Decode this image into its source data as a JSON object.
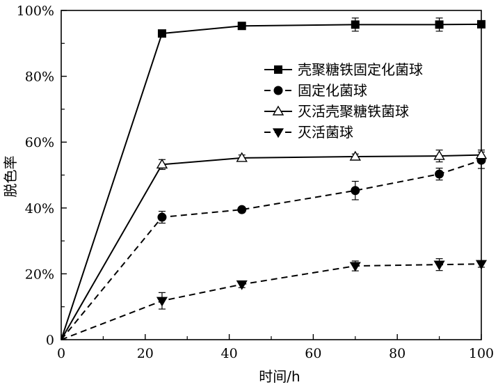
{
  "chart_data": {
    "type": "line",
    "xlabel": "时间/h",
    "ylabel": "脱色率",
    "xlim": [
      0,
      100
    ],
    "ylim": [
      0,
      100
    ],
    "x_ticks": [
      "0",
      "20",
      "40",
      "60",
      "80",
      "100"
    ],
    "y_ticks": [
      "0",
      "20%",
      "40%",
      "60%",
      "80%",
      "100%"
    ],
    "grid": false,
    "legend_position": "top-right",
    "series": [
      {
        "name": "壳聚糖铁固定化菌球",
        "marker": "square",
        "line": "solid",
        "points": [
          {
            "x": 0,
            "y": 0,
            "err": 0
          },
          {
            "x": 24,
            "y": 93,
            "err": 0.8
          },
          {
            "x": 43,
            "y": 95.3,
            "err": 0.8
          },
          {
            "x": 70,
            "y": 95.7,
            "err": 2.0
          },
          {
            "x": 90,
            "y": 95.7,
            "err": 2.0
          },
          {
            "x": 100,
            "y": 95.8,
            "err": 1.0
          }
        ]
      },
      {
        "name": "固定化菌球",
        "marker": "circle",
        "line": "dashed",
        "points": [
          {
            "x": 0,
            "y": 0,
            "err": 0
          },
          {
            "x": 24,
            "y": 37.2,
            "err": 1.8
          },
          {
            "x": 43,
            "y": 39.5,
            "err": 0.7
          },
          {
            "x": 70,
            "y": 45.3,
            "err": 2.8
          },
          {
            "x": 90,
            "y": 50.3,
            "err": 1.8
          },
          {
            "x": 100,
            "y": 54.5,
            "err": 2.5
          }
        ]
      },
      {
        "name": "灭活壳聚糖铁菌球",
        "marker": "triangle-up",
        "line": "solid",
        "points": [
          {
            "x": 0,
            "y": 0,
            "err": 0
          },
          {
            "x": 24,
            "y": 53.2,
            "err": 1.5
          },
          {
            "x": 43,
            "y": 55.2,
            "err": 0.9
          },
          {
            "x": 70,
            "y": 55.6,
            "err": 0.8
          },
          {
            "x": 90,
            "y": 55.8,
            "err": 1.8
          },
          {
            "x": 100,
            "y": 56.1,
            "err": 1.5
          }
        ]
      },
      {
        "name": "灭活菌球",
        "marker": "triangle-down",
        "line": "dashed",
        "points": [
          {
            "x": 0,
            "y": 0,
            "err": 0
          },
          {
            "x": 24,
            "y": 11.8,
            "err": 2.5
          },
          {
            "x": 43,
            "y": 16.8,
            "err": 1.0
          },
          {
            "x": 70,
            "y": 22.4,
            "err": 1.5
          },
          {
            "x": 90,
            "y": 22.8,
            "err": 1.8
          },
          {
            "x": 100,
            "y": 23.0,
            "err": 1.0
          }
        ]
      }
    ]
  }
}
